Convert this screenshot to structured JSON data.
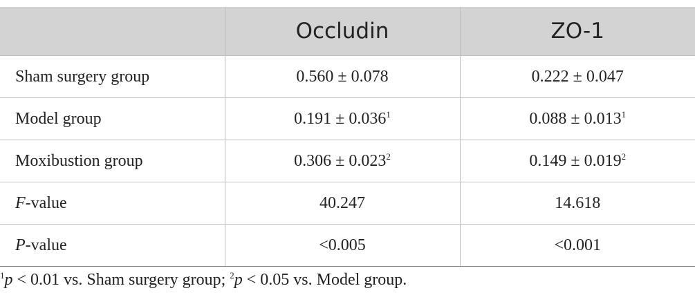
{
  "table": {
    "headers": [
      "",
      "Occludin",
      "ZO-1"
    ],
    "rows": [
      {
        "label": "Sham surgery group",
        "label_italic": "",
        "label_rest": "",
        "occludin": "0.560 ± 0.078",
        "occludin_sup": "",
        "zo1": "0.222 ± 0.047",
        "zo1_sup": ""
      },
      {
        "label": "Model group",
        "label_italic": "",
        "label_rest": "",
        "occludin": "0.191 ± 0.036",
        "occludin_sup": "1",
        "zo1": "0.088 ± 0.013",
        "zo1_sup": "1"
      },
      {
        "label": "Moxibustion group",
        "label_italic": "",
        "label_rest": "",
        "occludin": "0.306 ± 0.023",
        "occludin_sup": "2",
        "zo1": "0.149 ± 0.019",
        "zo1_sup": "2"
      },
      {
        "label": "",
        "label_italic": "F",
        "label_rest": "-value",
        "occludin": "40.247",
        "occludin_sup": "",
        "zo1": "14.618",
        "zo1_sup": ""
      },
      {
        "label": "",
        "label_italic": "P",
        "label_rest": "-value",
        "occludin": "<0.005",
        "occludin_sup": "",
        "zo1": "<0.001",
        "zo1_sup": ""
      }
    ]
  },
  "footnote": {
    "sup1": "1",
    "p1": "p",
    "text1": " < 0.01 vs. Sham surgery group; ",
    "sup2": "2",
    "p2": "p",
    "text2": " < 0.05 vs. Model group."
  }
}
